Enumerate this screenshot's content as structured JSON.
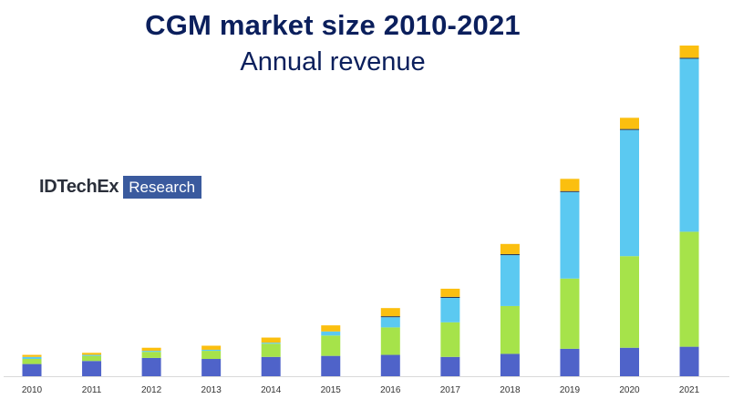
{
  "title": "CGM market size 2010-2021",
  "subtitle": "Annual revenue",
  "logo": {
    "name": "IDTechEx",
    "tag": "Research"
  },
  "colors": {
    "blue": "#4f63c9",
    "green": "#a6e34a",
    "light_blue": "#5bc9f1",
    "dark": "#2b3a55",
    "orange": "#fbbf0f",
    "axis": "#d9d9d9",
    "title": "#0b1f5c",
    "logo_box": "#3a5a9e"
  },
  "chart_data": {
    "type": "bar",
    "stacked": true,
    "categories": [
      "2010",
      "2011",
      "2012",
      "2013",
      "2014",
      "2015",
      "2016",
      "2017",
      "2018",
      "2019",
      "2020",
      "2021"
    ],
    "series": [
      {
        "values": [
          12,
          15,
          18,
          17,
          19,
          20,
          21,
          19,
          22,
          27,
          28,
          29
        ],
        "color": "#4f63c9"
      },
      {
        "values": [
          5,
          5,
          6,
          8,
          13,
          20,
          27,
          34,
          47,
          69,
          90,
          113
        ],
        "color": "#a6e34a"
      },
      {
        "values": [
          2,
          1,
          1,
          1,
          1,
          4,
          10,
          24,
          50,
          85,
          124,
          170
        ],
        "color": "#5bc9f1"
      },
      {
        "values": [
          0,
          0,
          0,
          0,
          0,
          0,
          1,
          1,
          1,
          1,
          1,
          1
        ],
        "color": "#2b3a55"
      },
      {
        "values": [
          2,
          2,
          3,
          4,
          5,
          6,
          8,
          8,
          10,
          12,
          11,
          12
        ],
        "color": "#fbbf0f"
      }
    ],
    "ylim": [
      0,
      325
    ],
    "grid": false,
    "legend": "none"
  }
}
